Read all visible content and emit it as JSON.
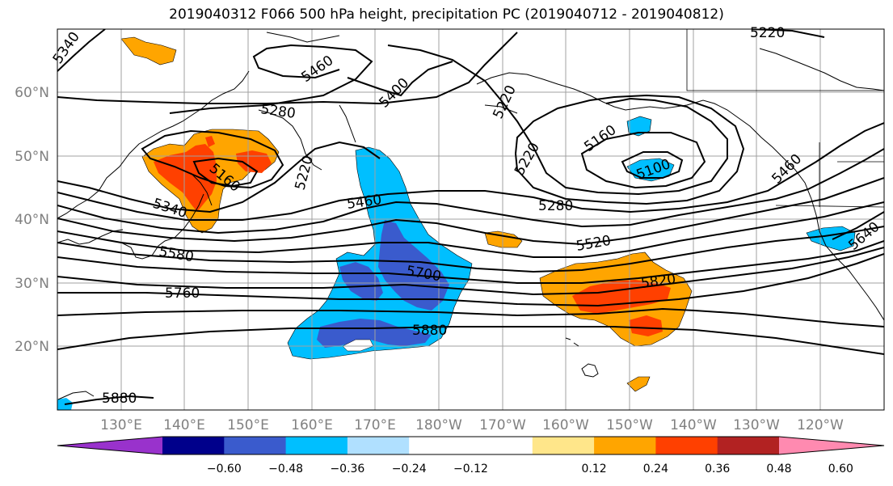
{
  "title": "2019040312 F066 500 hPa height, precipitation PC (2019040712 - 2019040812)",
  "map": {
    "projection": "plate-carree",
    "lon_range": [
      120,
      250
    ],
    "lat_range": [
      10,
      70
    ],
    "lat_ticks": [
      {
        "lat": 60,
        "label": "60°N"
      },
      {
        "lat": 50,
        "label": "50°N"
      },
      {
        "lat": 40,
        "label": "40°N"
      },
      {
        "lat": 30,
        "label": "30°N"
      },
      {
        "lat": 20,
        "label": "20°N"
      }
    ],
    "lon_ticks": [
      {
        "lon": 130,
        "label": "130°E"
      },
      {
        "lon": 140,
        "label": "140°E"
      },
      {
        "lon": 150,
        "label": "150°E"
      },
      {
        "lon": 160,
        "label": "160°E"
      },
      {
        "lon": 170,
        "label": "170°E"
      },
      {
        "lon": 180,
        "label": "180°W"
      },
      {
        "lon": 190,
        "label": "170°W"
      },
      {
        "lon": 200,
        "label": "160°W"
      },
      {
        "lon": 210,
        "label": "150°W"
      },
      {
        "lon": 220,
        "label": "140°W"
      },
      {
        "lon": 230,
        "label": "130°W"
      },
      {
        "lon": 240,
        "label": "120°W"
      }
    ],
    "grid": true,
    "tick_label_color": "#808080"
  },
  "contour_labels": [
    "5340",
    "5460",
    "5400",
    "5220",
    "5280",
    "5160",
    "5220",
    "5160",
    "5100",
    "5220",
    "5460",
    "5280",
    "5340",
    "5580",
    "5700",
    "5520",
    "5820",
    "5760",
    "5880",
    "5880",
    "5640",
    "5460",
    "5220"
  ],
  "colorbar": {
    "colors": [
      "#9932CC",
      "#00008B",
      "#3A5BCD",
      "#00BFFF",
      "#B0E0FF",
      "#FFFFFF",
      "#FFFFFF",
      "#FFE68A",
      "#FFA500",
      "#FF4000",
      "#B22222",
      "#FF8AB0"
    ],
    "tick_labels": [
      "−0.60",
      "−0.48",
      "−0.36",
      "−0.24",
      "−0.12",
      "0.12",
      "0.24",
      "0.36",
      "0.48",
      "0.60"
    ],
    "extend": "both"
  }
}
